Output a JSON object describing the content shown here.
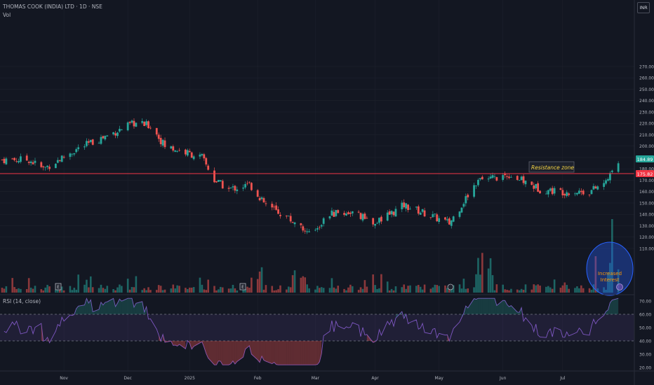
{
  "header": {
    "title": "THOMAS COOK (INDIA) LTD · 1D · NSE",
    "vol_label": "Vol",
    "rsi_label": "RSI (14, close)",
    "currency": "INR"
  },
  "colors": {
    "background": "#131722",
    "up": "#26a69a",
    "down": "#ef5350",
    "rsi_line": "#7e57c2",
    "resistance_line": "#f23645",
    "annotation_bg": "#1e222d",
    "annotation_text": "#f5d442",
    "circle_fill": "#2962ff",
    "interest_text": "#ff9800"
  },
  "price_axis": [
    "270.00",
    "260.00",
    "250.00",
    "240.00",
    "230.00",
    "220.00",
    "210.00",
    "200.00",
    "190.00",
    "180.00",
    "170.00",
    "160.00",
    "150.00",
    "140.00",
    "130.00",
    "120.00",
    "110.00"
  ],
  "rsi_axis": [
    "70.00",
    "60.00",
    "50.00",
    "40.00",
    "30.00",
    "20.00"
  ],
  "time_axis": [
    "Nov",
    "Dec",
    "2025",
    "Feb",
    "Mar",
    "Apr",
    "May",
    "Jun",
    "Jul"
  ],
  "price_badges": {
    "last": "184.89",
    "resistance": "175.82"
  },
  "annotations": {
    "resistance_zone": "Resistance zone",
    "interest_line1": "Increased",
    "interest_line2": "Interest"
  },
  "chart_data": {
    "type": "candlestick",
    "title": "THOMAS COOK (INDIA) LTD · 1D · NSE",
    "ylim": [
      105,
      275
    ],
    "resistance_level": 175.82,
    "last_price": 184.89,
    "rsi_levels": [
      60,
      40
    ],
    "rsi_ylim": [
      15,
      75
    ],
    "key_points": [
      {
        "date": "2024-10-15",
        "close": 188
      },
      {
        "date": "2024-10-22",
        "close": 180
      },
      {
        "date": "2024-11-07",
        "close": 197
      },
      {
        "date": "2024-12-05",
        "close": 220
      },
      {
        "date": "2024-12-13",
        "close": 218
      },
      {
        "date": "2024-12-20",
        "close": 200
      },
      {
        "date": "2025-01-07",
        "close": 190
      },
      {
        "date": "2025-01-13",
        "close": 170
      },
      {
        "date": "2025-01-20",
        "close": 162
      },
      {
        "date": "2025-01-30",
        "close": 166
      },
      {
        "date": "2025-02-07",
        "close": 148
      },
      {
        "date": "2025-02-17",
        "close": 138
      },
      {
        "date": "2025-02-28",
        "close": 122
      },
      {
        "date": "2025-03-10",
        "close": 140
      },
      {
        "date": "2025-03-20",
        "close": 142
      },
      {
        "date": "2025-04-01",
        "close": 132
      },
      {
        "date": "2025-04-15",
        "close": 148
      },
      {
        "date": "2025-04-25",
        "close": 141
      },
      {
        "date": "2025-05-07",
        "close": 132
      },
      {
        "date": "2025-05-20",
        "close": 168
      },
      {
        "date": "2025-06-05",
        "close": 175
      },
      {
        "date": "2025-06-20",
        "close": 162
      },
      {
        "date": "2025-07-01",
        "close": 160
      },
      {
        "date": "2025-07-14",
        "close": 160
      },
      {
        "date": "2025-07-22",
        "close": 168
      },
      {
        "date": "2025-07-28",
        "close": 184.89
      }
    ]
  }
}
